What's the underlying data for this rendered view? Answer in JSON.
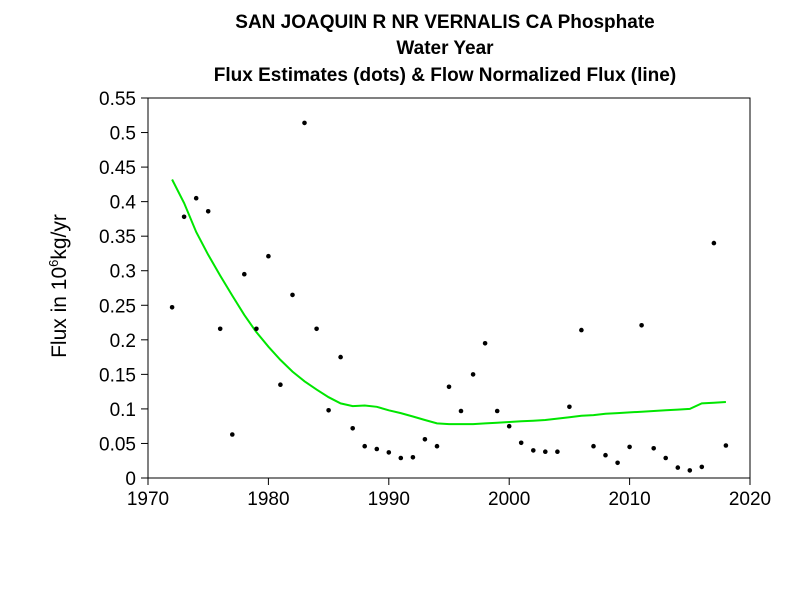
{
  "chart_data": {
    "type": "scatter",
    "title_lines": [
      "SAN JOAQUIN R NR VERNALIS CA   Phosphate",
      "Water Year",
      "Flux Estimates (dots) & Flow Normalized Flux (line)"
    ],
    "ylabel": {
      "prefix": "Flux in 10",
      "superscript": "6",
      "suffix": "kg/yr"
    },
    "xlim": [
      1970,
      2020
    ],
    "ylim": [
      0,
      0.55
    ],
    "xticks": [
      "1970",
      "1980",
      "1990",
      "2000",
      "2010",
      "2020"
    ],
    "yticks": [
      "0",
      "0.05",
      "0.1",
      "0.15",
      "0.2",
      "0.25",
      "0.3",
      "0.35",
      "0.4",
      "0.45",
      "0.5",
      "0.55"
    ],
    "grid": false,
    "series": [
      {
        "kind": "points",
        "color": "#000000",
        "x": [
          1972,
          1973,
          1974,
          1975,
          1976,
          1977,
          1978,
          1979,
          1980,
          1981,
          1982,
          1983,
          1984,
          1985,
          1986,
          1987,
          1988,
          1989,
          1990,
          1991,
          1992,
          1993,
          1994,
          1995,
          1996,
          1997,
          1998,
          1999,
          2000,
          2001,
          2002,
          2003,
          2004,
          2005,
          2006,
          2007,
          2008,
          2009,
          2010,
          2011,
          2012,
          2013,
          2014,
          2015,
          2016,
          2017,
          2018
        ],
        "y": [
          0.247,
          0.378,
          0.405,
          0.386,
          0.216,
          0.063,
          0.295,
          0.216,
          0.321,
          0.135,
          0.265,
          0.514,
          0.216,
          0.098,
          0.175,
          0.072,
          0.046,
          0.042,
          0.037,
          0.029,
          0.03,
          0.056,
          0.046,
          0.132,
          0.097,
          0.15,
          0.195,
          0.097,
          0.075,
          0.051,
          0.04,
          0.038,
          0.038,
          0.103,
          0.214,
          0.046,
          0.033,
          0.022,
          0.045,
          0.221,
          0.043,
          0.029,
          0.015,
          0.011,
          0.016,
          0.34,
          0.047
        ]
      },
      {
        "kind": "line",
        "color": "#00e600",
        "x": [
          1972,
          1973,
          1974,
          1975,
          1976,
          1977,
          1978,
          1979,
          1980,
          1981,
          1982,
          1983,
          1984,
          1985,
          1986,
          1987,
          1988,
          1989,
          1990,
          1991,
          1992,
          1993,
          1994,
          1995,
          1996,
          1997,
          1998,
          1999,
          2000,
          2001,
          2002,
          2003,
          2004,
          2005,
          2006,
          2007,
          2008,
          2009,
          2010,
          2011,
          2012,
          2013,
          2014,
          2015,
          2016,
          2017,
          2018
        ],
        "y": [
          0.432,
          0.398,
          0.356,
          0.323,
          0.293,
          0.264,
          0.236,
          0.211,
          0.19,
          0.171,
          0.154,
          0.14,
          0.128,
          0.117,
          0.108,
          0.104,
          0.105,
          0.103,
          0.098,
          0.094,
          0.089,
          0.084,
          0.079,
          0.078,
          0.078,
          0.078,
          0.079,
          0.08,
          0.081,
          0.082,
          0.083,
          0.084,
          0.086,
          0.088,
          0.09,
          0.091,
          0.093,
          0.094,
          0.095,
          0.096,
          0.097,
          0.098,
          0.099,
          0.1,
          0.108,
          0.109,
          0.11
        ]
      }
    ]
  }
}
